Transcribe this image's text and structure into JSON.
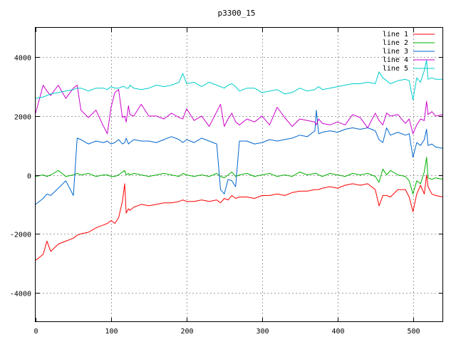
{
  "chart_data": {
    "type": "line",
    "title": "p3300_15",
    "xlabel": "",
    "ylabel": "",
    "xlim": [
      0,
      540
    ],
    "ylim": [
      -5000,
      5000
    ],
    "x_ticks": [
      0,
      100,
      200,
      300,
      400,
      500
    ],
    "y_ticks": [
      -4000,
      -2000,
      0,
      2000,
      4000
    ],
    "grid": true,
    "legend_position": "top-right",
    "x": [
      0,
      10,
      15,
      20,
      30,
      40,
      50,
      55,
      60,
      70,
      80,
      90,
      95,
      100,
      105,
      110,
      115,
      118,
      120,
      123,
      125,
      130,
      140,
      150,
      160,
      170,
      180,
      190,
      195,
      200,
      210,
      220,
      230,
      240,
      245,
      250,
      255,
      260,
      265,
      270,
      280,
      290,
      300,
      310,
      320,
      330,
      340,
      350,
      360,
      370,
      372,
      375,
      380,
      390,
      400,
      410,
      420,
      430,
      440,
      450,
      455,
      460,
      465,
      470,
      480,
      490,
      495,
      500,
      505,
      510,
      515,
      518,
      520,
      525,
      530,
      540
    ],
    "series": [
      {
        "name": "line 1",
        "color": "#ff0000",
        "values": [
          -2900,
          -2700,
          -2250,
          -2600,
          -2350,
          -2250,
          -2150,
          -2050,
          -2000,
          -1950,
          -1800,
          -1700,
          -1650,
          -1550,
          -1650,
          -1450,
          -900,
          -300,
          -1300,
          -1150,
          -1200,
          -1100,
          -1000,
          -1050,
          -1000,
          -950,
          -950,
          -900,
          -850,
          -900,
          -900,
          -850,
          -900,
          -850,
          -950,
          -800,
          -850,
          -700,
          -800,
          -750,
          -750,
          -800,
          -700,
          -700,
          -650,
          -700,
          -600,
          -550,
          -550,
          -500,
          -500,
          -500,
          -450,
          -400,
          -450,
          -350,
          -300,
          -350,
          -300,
          -500,
          -1050,
          -700,
          -700,
          -750,
          -500,
          -500,
          -750,
          -1250,
          -650,
          -350,
          -650,
          0,
          -400,
          -650,
          -700,
          -750
        ]
      },
      {
        "name": "line 2",
        "color": "#00b000",
        "values": [
          -50,
          0,
          -50,
          0,
          150,
          -50,
          0,
          50,
          0,
          50,
          -50,
          0,
          0,
          -50,
          -50,
          0,
          100,
          150,
          0,
          50,
          0,
          50,
          0,
          -50,
          0,
          50,
          0,
          -50,
          50,
          0,
          -50,
          0,
          -50,
          50,
          -50,
          -100,
          0,
          100,
          -50,
          0,
          50,
          -50,
          0,
          50,
          -50,
          0,
          -50,
          100,
          0,
          50,
          50,
          0,
          -50,
          50,
          0,
          -50,
          50,
          0,
          50,
          -50,
          -250,
          200,
          0,
          150,
          0,
          -50,
          -200,
          -650,
          -200,
          -300,
          100,
          600,
          -100,
          -150,
          -100,
          -150
        ]
      },
      {
        "name": "line 3",
        "color": "#0066cc",
        "values": [
          -1000,
          -800,
          -650,
          -700,
          -450,
          -200,
          -700,
          1250,
          1200,
          1050,
          1150,
          1100,
          1150,
          1050,
          1100,
          1200,
          1050,
          1100,
          1250,
          1050,
          1100,
          1200,
          1150,
          1150,
          1100,
          1200,
          1300,
          1200,
          1100,
          1200,
          1100,
          1250,
          1150,
          1050,
          -500,
          -650,
          -150,
          -200,
          -400,
          1150,
          1150,
          1050,
          1100,
          1200,
          1150,
          1200,
          1250,
          1350,
          1300,
          1500,
          2200,
          1400,
          1450,
          1500,
          1450,
          1550,
          1600,
          1550,
          1600,
          1500,
          1200,
          1100,
          1600,
          1350,
          1450,
          1350,
          1400,
          600,
          1100,
          1000,
          1200,
          1550,
          1000,
          1050,
          950,
          900
        ]
      },
      {
        "name": "line 4",
        "color": "#cc00cc",
        "values": [
          2100,
          3050,
          2850,
          2700,
          3050,
          2600,
          2950,
          3050,
          2200,
          1950,
          2200,
          1650,
          1400,
          2300,
          2800,
          2900,
          1950,
          2000,
          1800,
          2350,
          2050,
          2000,
          2400,
          2000,
          2000,
          1900,
          2100,
          1950,
          1900,
          2250,
          1850,
          2000,
          1650,
          2150,
          2400,
          1650,
          1900,
          2100,
          1800,
          1700,
          1900,
          1800,
          2000,
          1700,
          2300,
          1950,
          1650,
          1900,
          1850,
          1800,
          1700,
          1900,
          1750,
          1700,
          1800,
          1700,
          2050,
          1950,
          1600,
          2100,
          1850,
          1700,
          2100,
          2000,
          2050,
          1750,
          1900,
          1400,
          1700,
          1900,
          1850,
          2500,
          2050,
          2150,
          2000,
          2050
        ]
      },
      {
        "name": "line 5",
        "color": "#00cccc",
        "values": [
          2600,
          2650,
          2700,
          2750,
          2800,
          2850,
          2900,
          2950,
          2950,
          2850,
          2950,
          2950,
          2900,
          3000,
          2950,
          2950,
          3000,
          3000,
          2950,
          2950,
          3050,
          2950,
          2900,
          2950,
          3050,
          3000,
          3050,
          3150,
          3450,
          3100,
          3150,
          3000,
          3150,
          3050,
          3000,
          2950,
          3050,
          3100,
          3000,
          2850,
          2950,
          2950,
          2800,
          2850,
          2900,
          2750,
          2800,
          2950,
          2850,
          2900,
          2950,
          3000,
          2900,
          2950,
          3000,
          3050,
          3100,
          3100,
          3150,
          3100,
          3500,
          3300,
          3200,
          3100,
          3200,
          3250,
          3200,
          2550,
          3300,
          3150,
          3550,
          3900,
          3250,
          3300,
          3250,
          3250
        ]
      }
    ]
  }
}
